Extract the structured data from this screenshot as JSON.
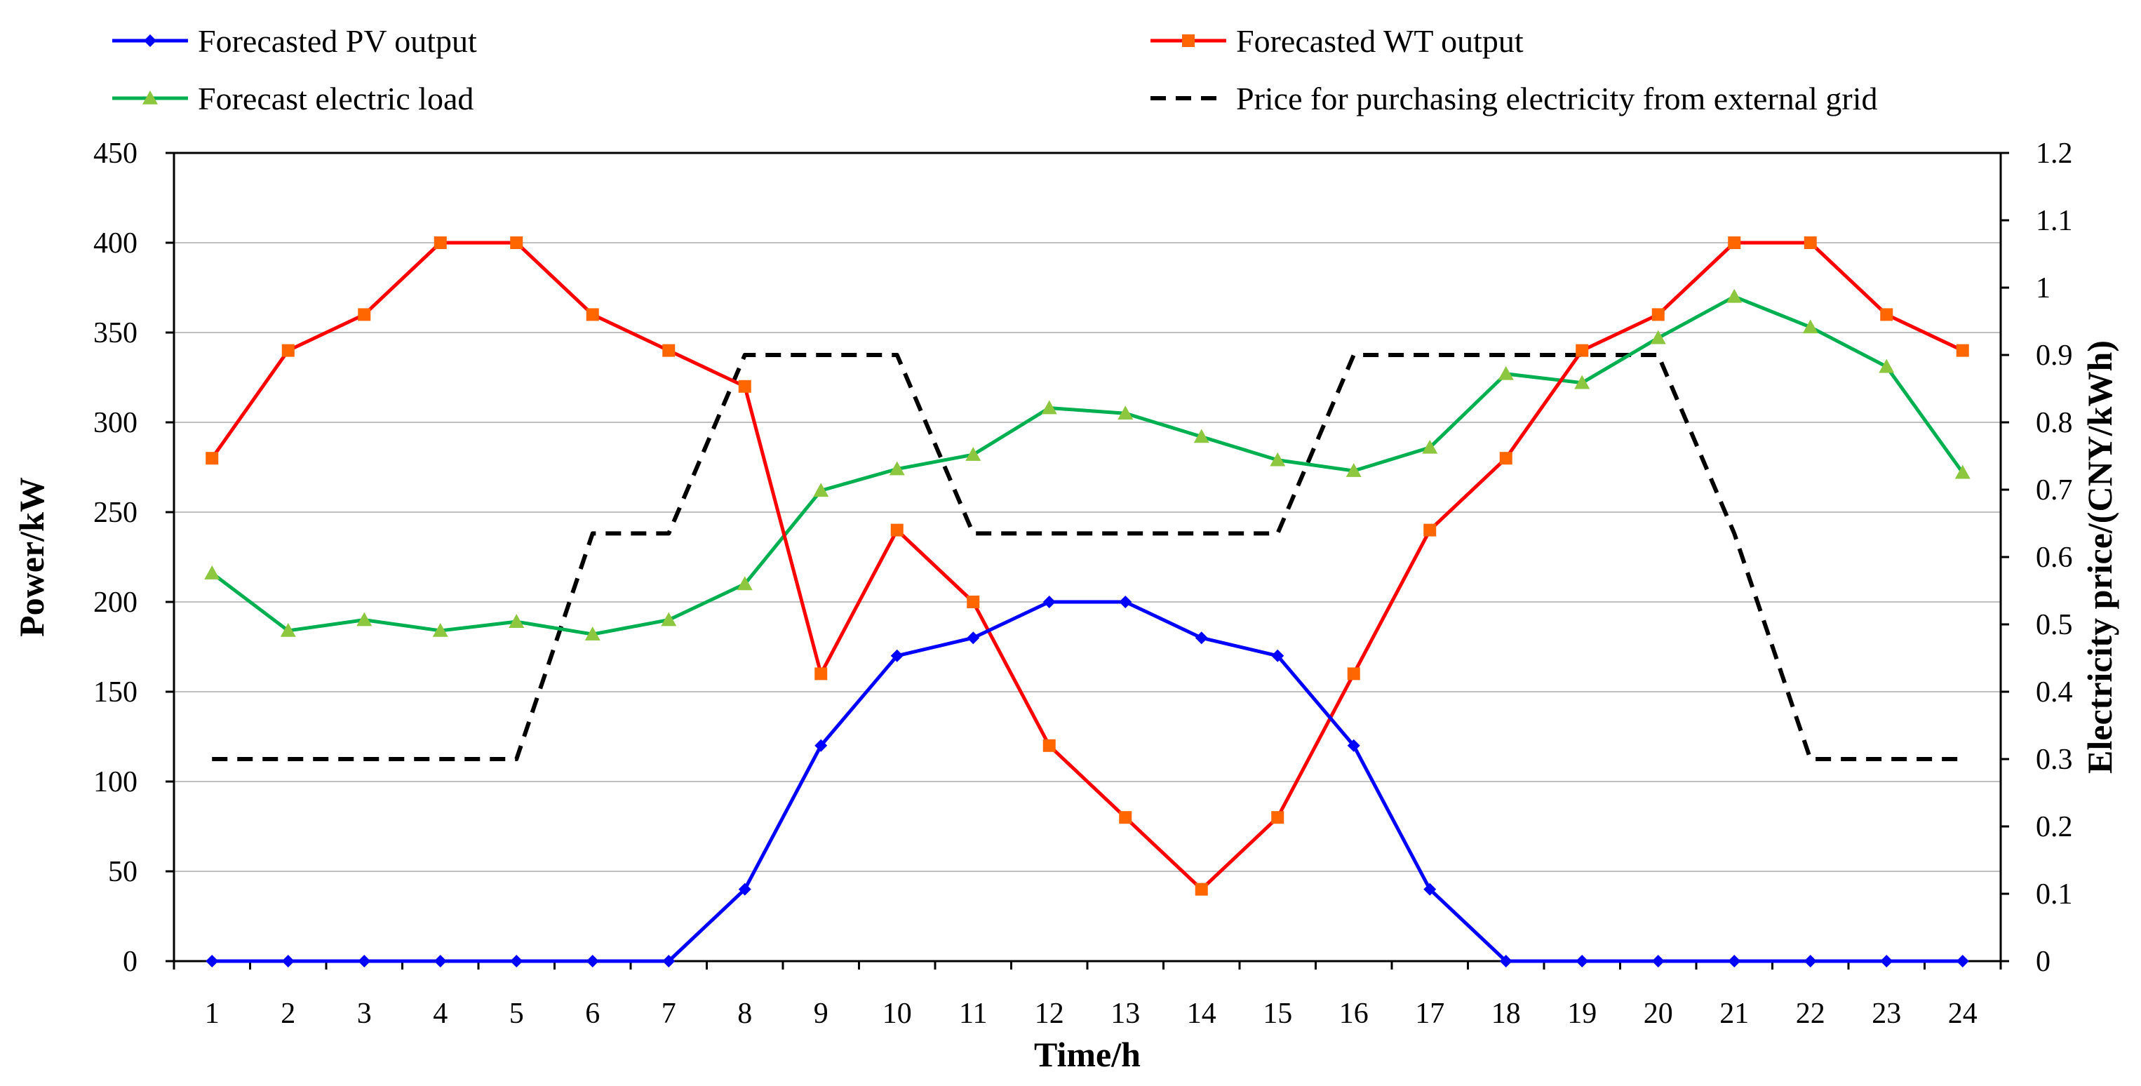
{
  "chart_data": {
    "type": "line",
    "title": "",
    "xlabel": "Time/h",
    "ylabel": "Power/kW",
    "y2label": "Electricity  price/(CNY/kWh)",
    "x": [
      1,
      2,
      3,
      4,
      5,
      6,
      7,
      8,
      9,
      10,
      11,
      12,
      13,
      14,
      15,
      16,
      17,
      18,
      19,
      20,
      21,
      22,
      23,
      24
    ],
    "ylim": [
      0,
      450
    ],
    "yticks": [
      0,
      50,
      100,
      150,
      200,
      250,
      300,
      350,
      400,
      450
    ],
    "y2lim": [
      0,
      1.2
    ],
    "y2ticks": [
      "0",
      "0.1",
      "0.2",
      "0.3",
      "0.4",
      "0.5",
      "0.6",
      "0.7",
      "0.8",
      "0.9",
      "1",
      "1.1",
      "1.2"
    ],
    "grid": true,
    "legend_position": "top",
    "series": [
      {
        "name": "Forecasted PV output",
        "axis": "left",
        "color": "#0000ff",
        "marker": "diamond",
        "values": [
          0,
          0,
          0,
          0,
          0,
          0,
          0,
          40,
          120,
          170,
          180,
          200,
          200,
          180,
          170,
          120,
          40,
          0,
          0,
          0,
          0,
          0,
          0,
          0
        ]
      },
      {
        "name": "Forecasted WT output",
        "axis": "left",
        "color": "#ff0000",
        "marker_color": "#ff6600",
        "marker": "square",
        "values": [
          280,
          340,
          360,
          400,
          400,
          360,
          340,
          320,
          160,
          240,
          200,
          120,
          80,
          40,
          80,
          160,
          240,
          280,
          340,
          360,
          400,
          400,
          360,
          340
        ]
      },
      {
        "name": "Forecast electric load",
        "axis": "left",
        "color": "#00b050",
        "marker_color": "#8dc63f",
        "marker": "triangle",
        "values": [
          216,
          184,
          190,
          184,
          189,
          182,
          190,
          210,
          262,
          274,
          282,
          308,
          305,
          292,
          279,
          273,
          286,
          327,
          322,
          347,
          370,
          353,
          331,
          272
        ]
      },
      {
        "name": "Price for purchasing electricity from external grid",
        "axis": "right",
        "color": "#000000",
        "marker": "none",
        "dashed": true,
        "values": [
          0.3,
          0.3,
          0.3,
          0.3,
          0.3,
          0.635,
          0.635,
          0.9,
          0.9,
          0.9,
          0.635,
          0.635,
          0.635,
          0.635,
          0.635,
          0.9,
          0.9,
          0.9,
          0.9,
          0.9,
          0.635,
          0.3,
          0.3,
          0.3
        ]
      }
    ]
  }
}
